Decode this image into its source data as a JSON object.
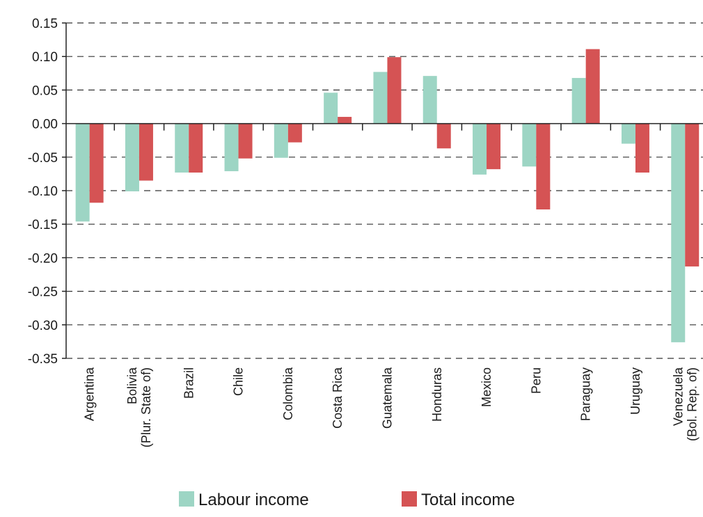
{
  "chart_data": {
    "type": "bar",
    "categories": [
      [
        "Argentina"
      ],
      [
        "Bolivia",
        "(Plur. State of)"
      ],
      [
        "Brazil"
      ],
      [
        "Chile"
      ],
      [
        "Colombia"
      ],
      [
        "Costa Rica"
      ],
      [
        "Guatemala"
      ],
      [
        "Honduras"
      ],
      [
        "Mexico"
      ],
      [
        "Peru"
      ],
      [
        "Paraguay"
      ],
      [
        "Uruguay"
      ],
      [
        "Venezuela",
        "(Bol. Rep. of)"
      ]
    ],
    "series": [
      {
        "name": "Labour income",
        "color": "#9dd5c4",
        "values": [
          -0.146,
          -0.101,
          -0.073,
          -0.071,
          -0.051,
          0.046,
          0.077,
          0.071,
          -0.076,
          -0.064,
          0.068,
          -0.03,
          -0.326
        ]
      },
      {
        "name": "Total income",
        "color": "#d55354",
        "values": [
          -0.118,
          -0.085,
          -0.073,
          -0.052,
          -0.028,
          0.01,
          0.099,
          -0.037,
          -0.068,
          -0.128,
          0.111,
          -0.073,
          -0.213
        ]
      }
    ],
    "yticks": [
      "0.15",
      "0.10",
      "0.05",
      "0.00",
      "-0.05",
      "-0.10",
      "-0.15",
      "-0.20",
      "-0.25",
      "-0.30",
      "-0.35"
    ],
    "ylim": [
      -0.35,
      0.15
    ],
    "grid": "horizontal-dashed",
    "legend": "bottom"
  }
}
